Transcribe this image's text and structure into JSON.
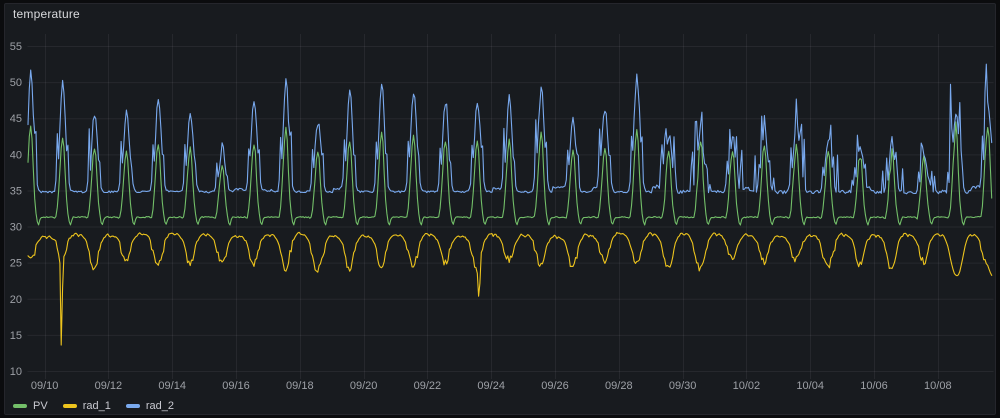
{
  "panel": {
    "title": "temperature",
    "background": "#181b1f",
    "border_color": "#25262c",
    "page_background": "#0b0c0e",
    "title_color": "#d9dadd"
  },
  "axis": {
    "text_color": "#9da0a6",
    "grid_color": "rgba(204,204,220,0.08)",
    "legend_text_color": "#c9cad1"
  },
  "chart_data": {
    "type": "line",
    "title": "temperature",
    "xlabel": "",
    "ylabel": "",
    "grid": true,
    "legend_position": "bottom",
    "x_ticks": [
      "09/10",
      "09/12",
      "09/14",
      "09/16",
      "09/18",
      "09/20",
      "09/22",
      "09/24",
      "09/26",
      "09/28",
      "09/30",
      "10/02",
      "10/04",
      "10/06",
      "10/08"
    ],
    "x_tick_interval_days": 2,
    "y_ticks": [
      10,
      15,
      20,
      25,
      30,
      35,
      40,
      45,
      50,
      55
    ],
    "ylim": [
      10,
      55
    ],
    "x_start_days_before_first_tick": 0.52,
    "x_end_days_after_first_tick": 29.73,
    "noisy_from_day": 19,
    "series": [
      {
        "name": "PV",
        "color": "#73bf69",
        "kind": "daily-peak",
        "baseline": 31.3,
        "post_peak_dip": 30.2,
        "peaks_start_day": -1,
        "daily_peaks": [
          44,
          42.5,
          41,
          40.5,
          41.5,
          41,
          38.5,
          41.5,
          43.5,
          40.5,
          42,
          43,
          42.5,
          42,
          42,
          42,
          43,
          40.5,
          41,
          43.5,
          40,
          41.5,
          40.5,
          41,
          41.5,
          40.5,
          40,
          40,
          39.5,
          43.5,
          44
        ]
      },
      {
        "name": "rad_1",
        "color": "#edc41d",
        "kind": "plateau-dip",
        "plateau": 28.45,
        "midday_low": 25.2,
        "anomalies": [
          {
            "day": 0.53,
            "value": 12.6,
            "width": 0.03
          },
          {
            "day": 13.62,
            "value": 19.5,
            "width": 0.035
          },
          {
            "day": 28.6,
            "value": 23.2,
            "width": 0.22
          },
          {
            "day": 29.75,
            "value": 22.8,
            "width": 0.18
          }
        ]
      },
      {
        "name": "rad_2",
        "color": "#79a9ee",
        "kind": "daily-peak-spiky",
        "baseline": 34.8,
        "peaks_start_day": -1,
        "daily_peaks": [
          51.5,
          49.8,
          46,
          45.5,
          47.5,
          46,
          41,
          47.5,
          50,
          44.5,
          48.5,
          50,
          48.5,
          47.5,
          47.5,
          47.5,
          49,
          45,
          46.5,
          50.5,
          44,
          46.5,
          44.5,
          45.5,
          46.5,
          44,
          43,
          43.5,
          41.5,
          48.5,
          51
        ]
      }
    ]
  }
}
